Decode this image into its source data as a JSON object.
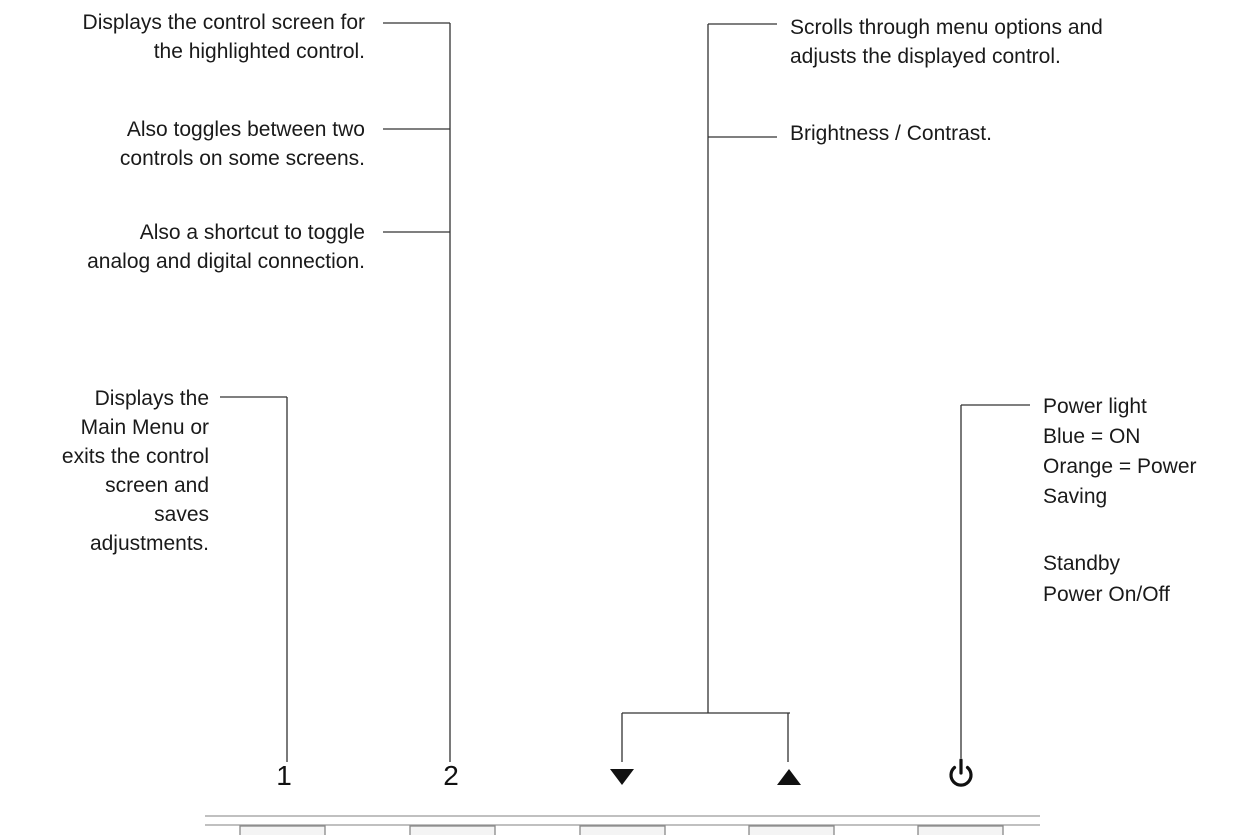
{
  "callouts": {
    "control_screen": [
      "Displays the control screen for",
      "the highlighted control."
    ],
    "toggles": [
      "Also toggles between two",
      "controls on some screens."
    ],
    "shortcut": [
      "Also a shortcut to toggle",
      "analog and digital connection."
    ],
    "main_menu": [
      "Displays the",
      "Main Menu or",
      "exits the control",
      "screen and",
      "saves",
      "adjustments."
    ],
    "scrolls": [
      "Scrolls through menu options and",
      "adjusts the displayed control."
    ],
    "brightness": "Brightness / Contrast.",
    "power_light": [
      "Power light",
      "Blue = ON",
      "Orange = Power",
      "Saving"
    ],
    "standby": [
      "Standby",
      "Power On/Off"
    ]
  },
  "buttons": {
    "button1_label": "1",
    "button2_label": "2",
    "down_icon": "down-triangle-icon",
    "up_icon": "up-triangle-icon",
    "power_icon": "power-icon"
  }
}
